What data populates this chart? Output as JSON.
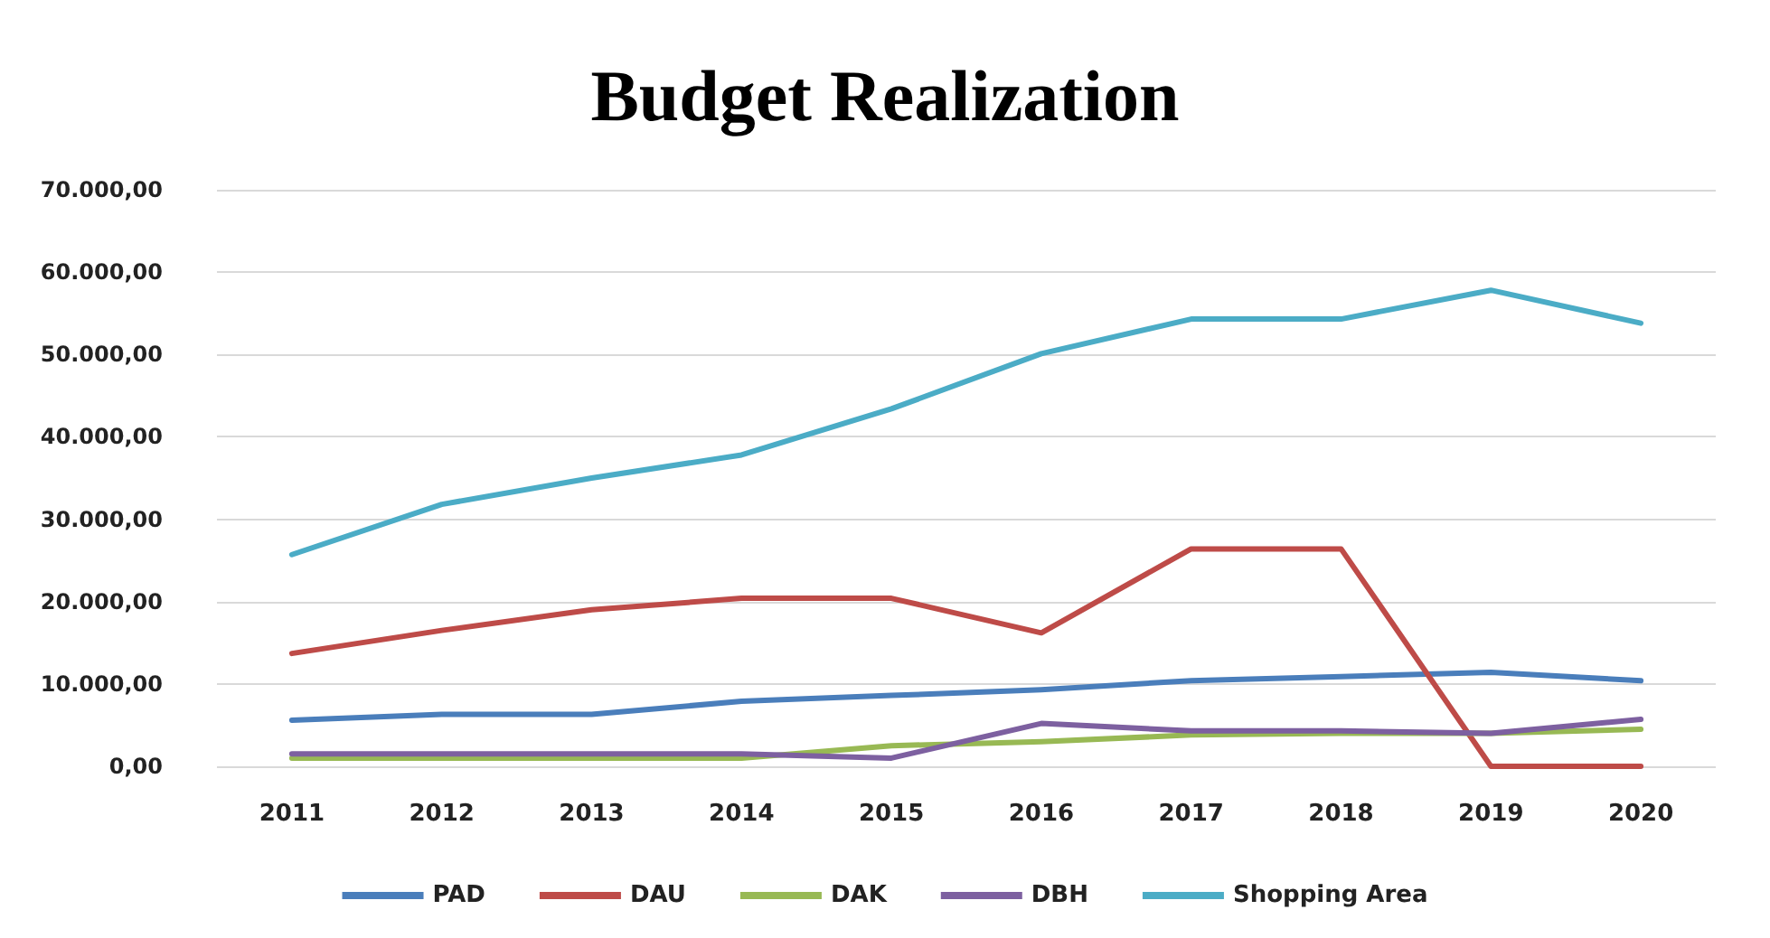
{
  "chart_data": {
    "type": "line",
    "title": "Budget Realization",
    "categories": [
      "2011",
      "2012",
      "2013",
      "2014",
      "2015",
      "2016",
      "2017",
      "2018",
      "2019",
      "2020"
    ],
    "series": [
      {
        "name": "PAD",
        "color": "#4a7ebb",
        "values": [
          5600,
          6300,
          6300,
          7900,
          8600,
          9300,
          10400,
          10900,
          11400,
          10400
        ]
      },
      {
        "name": "DAU",
        "color": "#be4b48",
        "values": [
          13700,
          16500,
          19000,
          20400,
          20400,
          16200,
          26400,
          26400,
          0,
          0
        ]
      },
      {
        "name": "DAK",
        "color": "#98b954",
        "values": [
          1000,
          1000,
          1000,
          1000,
          2500,
          3000,
          3800,
          4000,
          4000,
          4500
        ]
      },
      {
        "name": "DBH",
        "color": "#7d60a0",
        "values": [
          1500,
          1500,
          1500,
          1500,
          1000,
          5200,
          4300,
          4300,
          4000,
          5700
        ]
      },
      {
        "name": "Shopping Area",
        "color": "#4bacc6",
        "values": [
          25700,
          31800,
          35000,
          37800,
          43400,
          50100,
          54300,
          54300,
          57800,
          53800
        ]
      }
    ],
    "ylim": [
      0,
      70000
    ],
    "yticks": [
      {
        "value": 0,
        "label": "0,00"
      },
      {
        "value": 10000,
        "label": "10.000,00"
      },
      {
        "value": 20000,
        "label": "20.000,00"
      },
      {
        "value": 30000,
        "label": "30.000,00"
      },
      {
        "value": 40000,
        "label": "40.000,00"
      },
      {
        "value": 50000,
        "label": "50.000,00"
      },
      {
        "value": 60000,
        "label": "60.000,00"
      },
      {
        "value": 70000,
        "label": "70.000,00"
      }
    ],
    "grid": "y",
    "legend": "bottom",
    "marker": "none",
    "line_style": "solid"
  }
}
